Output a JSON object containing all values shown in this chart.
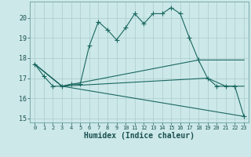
{
  "xlabel": "Humidex (Indice chaleur)",
  "background_color": "#cce8e8",
  "grid_color": "#aacccc",
  "line_color": "#1a6860",
  "xlim": [
    -0.5,
    23.5
  ],
  "ylim": [
    14.8,
    20.8
  ],
  "yticks": [
    15,
    16,
    17,
    18,
    19,
    20
  ],
  "xticks": [
    0,
    1,
    2,
    3,
    4,
    5,
    6,
    7,
    8,
    9,
    10,
    11,
    12,
    13,
    14,
    15,
    16,
    17,
    18,
    19,
    20,
    21,
    22,
    23
  ],
  "main_x": [
    0,
    1,
    2,
    3,
    4,
    5,
    6,
    7,
    8,
    9,
    10,
    11,
    12,
    13,
    14,
    15,
    16,
    17,
    18,
    19,
    20,
    21,
    22,
    23
  ],
  "main_y": [
    17.7,
    17.1,
    16.6,
    16.6,
    16.7,
    16.7,
    18.6,
    19.8,
    19.4,
    18.9,
    19.5,
    20.2,
    19.7,
    20.2,
    20.2,
    20.5,
    20.2,
    19.0,
    17.9,
    17.0,
    16.6,
    16.6,
    16.6,
    15.1
  ],
  "fan_lines": [
    {
      "x": [
        0,
        3,
        23
      ],
      "y": [
        17.7,
        16.6,
        15.1
      ]
    },
    {
      "x": [
        0,
        3,
        18,
        23
      ],
      "y": [
        17.7,
        16.6,
        17.9,
        17.9
      ]
    },
    {
      "x": [
        0,
        3,
        19,
        21,
        22,
        23
      ],
      "y": [
        17.7,
        16.6,
        17.0,
        16.6,
        16.6,
        16.6
      ]
    }
  ]
}
